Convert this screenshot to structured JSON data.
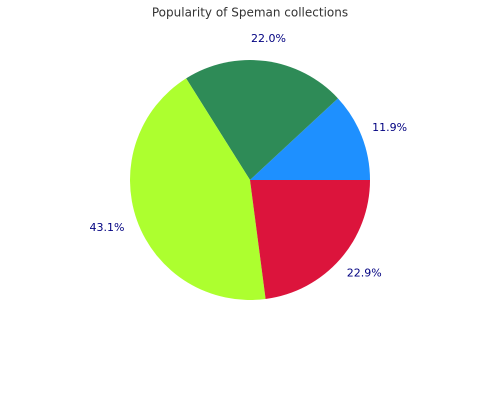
{
  "chart_data": {
    "type": "pie",
    "title": "Popularity of Speman collections",
    "values": [
      11.9,
      22.0,
      43.1,
      22.9
    ],
    "value_labels": [
      "11.9%",
      "22.0%",
      "43.1%",
      "22.9%"
    ],
    "colors": [
      "#1e90ff",
      "#2e8b57",
      "#adff2f",
      "#dc143c"
    ]
  }
}
